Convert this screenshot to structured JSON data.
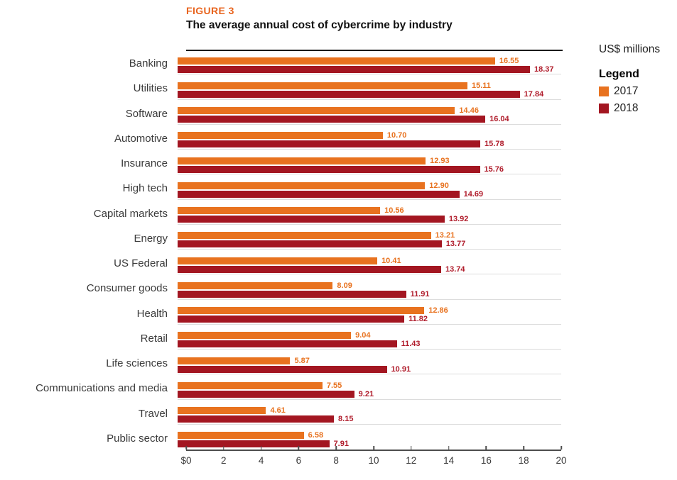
{
  "figure": {
    "label": "FIGURE 3",
    "label_color": "#E8641E",
    "title": "The average annual cost of cybercrime by industry"
  },
  "units_label": "US$ millions",
  "legend": {
    "heading": "Legend",
    "items": [
      {
        "label": "2017",
        "color": "#E8721F"
      },
      {
        "label": "2018",
        "color": "#A31621"
      }
    ]
  },
  "chart_data": {
    "type": "bar",
    "orientation": "horizontal",
    "title": "The average annual cost of cybercrime by industry",
    "xlabel": "US$ millions",
    "xlim": [
      0,
      20
    ],
    "grid": false,
    "legend_position": "right",
    "categories": [
      "Banking",
      "Utilities",
      "Software",
      "Automotive",
      "Insurance",
      "High tech",
      "Capital markets",
      "Energy",
      "US Federal",
      "Consumer goods",
      "Health",
      "Retail",
      "Life sciences",
      "Communications and media",
      "Travel",
      "Public sector"
    ],
    "series": [
      {
        "name": "2017",
        "color": "#E8721F",
        "label_color": "#E8721F",
        "values": [
          16.55,
          15.11,
          14.46,
          10.7,
          12.93,
          12.9,
          10.56,
          13.21,
          10.41,
          8.09,
          12.86,
          9.04,
          5.87,
          7.55,
          4.61,
          6.58
        ]
      },
      {
        "name": "2018",
        "color": "#A31621",
        "label_color": "#B01C2B",
        "values": [
          18.37,
          17.84,
          16.04,
          15.78,
          15.76,
          14.69,
          13.92,
          13.77,
          13.74,
          11.91,
          11.82,
          11.43,
          10.91,
          9.21,
          8.15,
          7.91
        ]
      }
    ],
    "x_ticks": [
      {
        "label": "$0",
        "value": 0
      },
      {
        "label": "2",
        "value": 2
      },
      {
        "label": "4",
        "value": 4
      },
      {
        "label": "6",
        "value": 6
      },
      {
        "label": "8",
        "value": 8
      },
      {
        "label": "10",
        "value": 10
      },
      {
        "label": "12",
        "value": 12
      },
      {
        "label": "14",
        "value": 14
      },
      {
        "label": "16",
        "value": 16
      },
      {
        "label": "18",
        "value": 18
      },
      {
        "label": "20",
        "value": 20
      }
    ]
  }
}
